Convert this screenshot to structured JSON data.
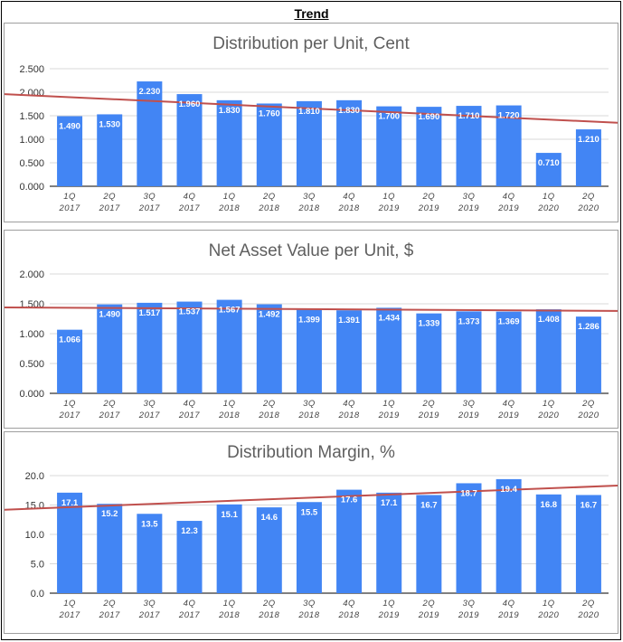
{
  "page": {
    "title": "Trend"
  },
  "colors": {
    "bar": "#4285f4",
    "trend": "#c0504d",
    "grid": "#d9d9d9",
    "axis": "#333333"
  },
  "chart_data": [
    {
      "type": "bar",
      "title": "Distribution per Unit, Cent",
      "categories": [
        [
          "1Q",
          "2017"
        ],
        [
          "2Q",
          "2017"
        ],
        [
          "3Q",
          "2017"
        ],
        [
          "4Q",
          "2017"
        ],
        [
          "1Q",
          "2018"
        ],
        [
          "2Q",
          "2018"
        ],
        [
          "3Q",
          "2018"
        ],
        [
          "4Q",
          "2018"
        ],
        [
          "1Q",
          "2019"
        ],
        [
          "2Q",
          "2019"
        ],
        [
          "3Q",
          "2019"
        ],
        [
          "4Q",
          "2019"
        ],
        [
          "1Q",
          "2020"
        ],
        [
          "2Q",
          "2020"
        ]
      ],
      "values": [
        1.49,
        1.53,
        2.23,
        1.96,
        1.83,
        1.76,
        1.81,
        1.83,
        1.7,
        1.69,
        1.71,
        1.72,
        0.71,
        1.21
      ],
      "labels": [
        "1.490",
        "1.530",
        "2.230",
        "1.960",
        "1.830",
        "1.760",
        "1.810",
        "1.830",
        "1.700",
        "1.690",
        "1.710",
        "1.720",
        "0.710",
        "1.210"
      ],
      "ylim": [
        0,
        2.5
      ],
      "yticks": [
        0,
        0.5,
        1.0,
        1.5,
        2.0,
        2.5
      ],
      "ytick_labels": [
        "0.000",
        "0.500",
        "1.000",
        "1.500",
        "2.000",
        "2.500"
      ],
      "trendline": {
        "start": 1.96,
        "end": 1.35
      },
      "xlabel": "",
      "ylabel": ""
    },
    {
      "type": "bar",
      "title": "Net Asset Value per Unit, $",
      "categories": [
        [
          "1Q",
          "2017"
        ],
        [
          "2Q",
          "2017"
        ],
        [
          "3Q",
          "2017"
        ],
        [
          "4Q",
          "2017"
        ],
        [
          "1Q",
          "2018"
        ],
        [
          "2Q",
          "2018"
        ],
        [
          "3Q",
          "2018"
        ],
        [
          "4Q",
          "2018"
        ],
        [
          "1Q",
          "2019"
        ],
        [
          "2Q",
          "2019"
        ],
        [
          "3Q",
          "2019"
        ],
        [
          "4Q",
          "2019"
        ],
        [
          "1Q",
          "2020"
        ],
        [
          "2Q",
          "2020"
        ]
      ],
      "values": [
        1.066,
        1.49,
        1.517,
        1.537,
        1.567,
        1.492,
        1.399,
        1.391,
        1.434,
        1.339,
        1.373,
        1.369,
        1.408,
        1.286
      ],
      "labels": [
        "1.066",
        "1.490",
        "1.517",
        "1.537",
        "1.567",
        "1.492",
        "1.399",
        "1.391",
        "1.434",
        "1.339",
        "1.373",
        "1.369",
        "1.408",
        "1.286"
      ],
      "ylim": [
        0,
        2.0
      ],
      "yticks": [
        0,
        0.5,
        1.0,
        1.5,
        2.0
      ],
      "ytick_labels": [
        "0.000",
        "0.500",
        "1.000",
        "1.500",
        "2.000"
      ],
      "trendline": {
        "start": 1.44,
        "end": 1.38
      },
      "xlabel": "",
      "ylabel": ""
    },
    {
      "type": "bar",
      "title": "Distribution Margin, %",
      "categories": [
        [
          "1Q",
          "2017"
        ],
        [
          "2Q",
          "2017"
        ],
        [
          "3Q",
          "2017"
        ],
        [
          "4Q",
          "2017"
        ],
        [
          "1Q",
          "2018"
        ],
        [
          "2Q",
          "2018"
        ],
        [
          "3Q",
          "2018"
        ],
        [
          "4Q",
          "2018"
        ],
        [
          "1Q",
          "2019"
        ],
        [
          "2Q",
          "2019"
        ],
        [
          "3Q",
          "2019"
        ],
        [
          "4Q",
          "2019"
        ],
        [
          "1Q",
          "2020"
        ],
        [
          "2Q",
          "2020"
        ]
      ],
      "values": [
        17.1,
        15.2,
        13.5,
        12.3,
        15.1,
        14.6,
        15.5,
        17.6,
        17.1,
        16.7,
        18.7,
        19.4,
        16.8,
        16.7
      ],
      "labels": [
        "17.1",
        "15.2",
        "13.5",
        "12.3",
        "15.1",
        "14.6",
        "15.5",
        "17.6",
        "17.1",
        "16.7",
        "18.7",
        "19.4",
        "16.8",
        "16.7"
      ],
      "ylim": [
        0,
        20
      ],
      "yticks": [
        0,
        5,
        10,
        15,
        20
      ],
      "ytick_labels": [
        "0.0",
        "5.0",
        "10.0",
        "15.0",
        "20.0"
      ],
      "trendline": {
        "start": 14.2,
        "end": 18.3
      },
      "xlabel": "",
      "ylabel": ""
    }
  ]
}
